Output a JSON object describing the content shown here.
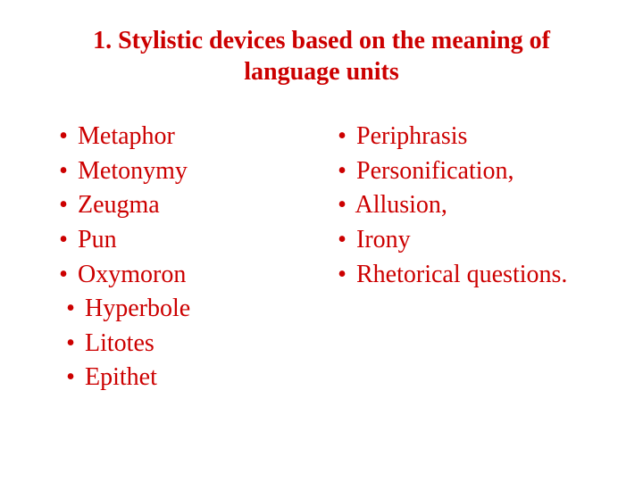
{
  "title": "1. Stylistic devices based on the meaning of language units",
  "colors": {
    "text": "#cc0000",
    "background": "#ffffff"
  },
  "typography": {
    "font_family": "Times New Roman",
    "title_fontsize": 28,
    "title_weight": "bold",
    "item_fontsize": 28
  },
  "bullet_glyph": "•",
  "left_items": [
    {
      "text": "Metaphor",
      "indent": false
    },
    {
      "text": "Metonymy",
      "indent": false
    },
    {
      "text": "Zeugma",
      "indent": false
    },
    {
      "text": "Pun",
      "indent": false
    },
    {
      "text": "Oxymoron",
      "indent": false
    },
    {
      "text": "Hyperbole",
      "indent": true
    },
    {
      "text": "Litotes",
      "indent": true
    },
    {
      "text": "Epithet",
      "indent": true
    }
  ],
  "right_items": [
    {
      "text": "Periphrasis",
      "indent": false
    },
    {
      "text": "Personification,",
      "indent": false
    },
    {
      "text": "Allusion,",
      "indent": false
    },
    {
      "text": "Irony",
      "indent": false
    },
    {
      "text": "Rhetorical questions.",
      "indent": false
    }
  ]
}
